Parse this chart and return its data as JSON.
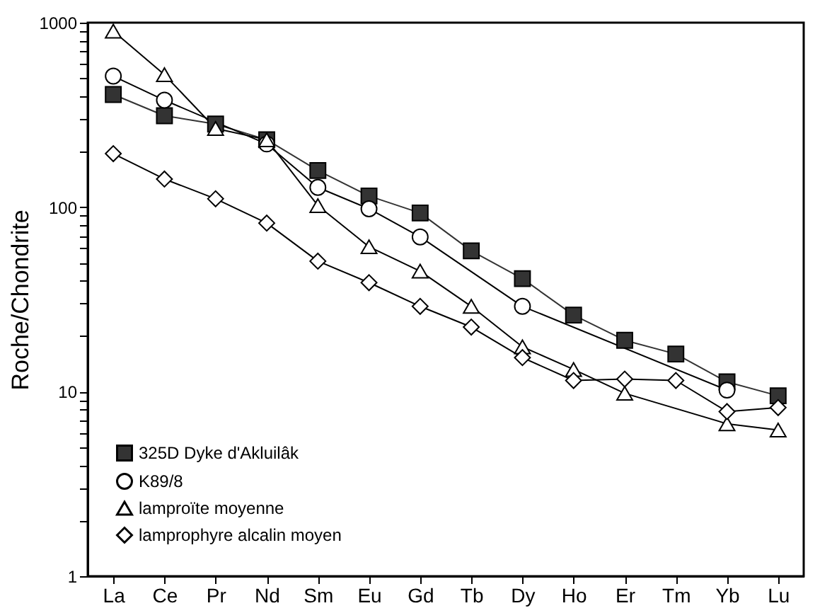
{
  "chart_data": {
    "type": "line",
    "ylabel": "Roche/Chondrite",
    "log": true,
    "ylim": [
      1,
      1000
    ],
    "yticks": [
      1,
      {
        "value": 2,
        "label": null
      },
      {
        "value": 3,
        "label": null
      },
      {
        "value": 4,
        "label": null
      },
      {
        "value": 5,
        "label": null
      },
      {
        "value": 6,
        "label": null
      },
      {
        "value": 7,
        "label": null
      },
      {
        "value": 8,
        "label": null
      },
      {
        "value": 9,
        "label": null
      },
      10,
      {
        "value": 20,
        "label": null
      },
      {
        "value": 30,
        "label": null
      },
      {
        "value": 40,
        "label": null
      },
      {
        "value": 50,
        "label": null
      },
      {
        "value": 60,
        "label": null
      },
      {
        "value": 70,
        "label": null
      },
      {
        "value": 80,
        "label": null
      },
      {
        "value": 90,
        "label": null
      },
      100,
      {
        "value": 200,
        "label": null
      },
      {
        "value": 300,
        "label": null
      },
      {
        "value": 400,
        "label": null
      },
      {
        "value": 500,
        "label": null
      },
      {
        "value": 600,
        "label": null
      },
      {
        "value": 700,
        "label": null
      },
      {
        "value": 800,
        "label": null
      },
      {
        "value": 900,
        "label": null
      },
      1000
    ],
    "categories": [
      "La",
      "Ce",
      "Pr",
      "Nd",
      "Sm",
      "Eu",
      "Gd",
      "Tb",
      "Dy",
      "Ho",
      "Er",
      "Tm",
      "Yb",
      "Lu"
    ],
    "legend": "bottom left",
    "grid": false,
    "series": [
      {
        "name": "325D Dyke d'Akluilâk",
        "color": "#333333",
        "marker": "square",
        "values": [
          408,
          313,
          282,
          232,
          158,
          115,
          93,
          58,
          41,
          26,
          19,
          16,
          11.3,
          9.5
        ]
      },
      {
        "name": "K89/8",
        "color": "#000000",
        "marker": "circle",
        "values": [
          513,
          380,
          null,
          220,
          128,
          98,
          69,
          null,
          29,
          null,
          null,
          null,
          10.2,
          null
        ]
      },
      {
        "name": "lamproïte moyenne",
        "color": "#000000",
        "marker": "triangle",
        "values": [
          900,
          522,
          267,
          232,
          102,
          61,
          45,
          29,
          17.5,
          13.2,
          9.8,
          null,
          6.7,
          6.2
        ]
      },
      {
        "name": "lamprophyre alcalin moyen",
        "color": "#000000",
        "marker": "diamond",
        "values": [
          195,
          142,
          111,
          82,
          51,
          39,
          29,
          22.4,
          15.3,
          11.5,
          11.7,
          11.5,
          7.8,
          8.2
        ]
      }
    ]
  }
}
